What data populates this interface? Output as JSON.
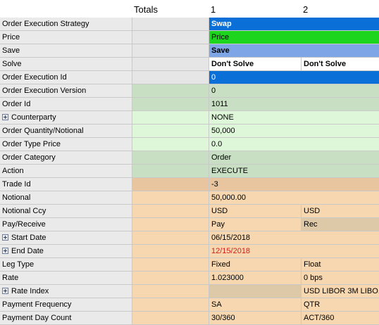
{
  "header": {
    "totals": "Totals",
    "col1": "1",
    "col2": "2"
  },
  "colors": {
    "label_bg": "#eaeaea",
    "totals_gray": "#e6e6e6",
    "totals_green": "#c8dfc3",
    "totals_orange": "#f6d7b0",
    "swap_blue": "#0a6fd6",
    "price_green": "#1cd51c",
    "save_blue": "#7ea6e6",
    "solve_white": "#ffffff",
    "val_green_dark": "#c8dfc3",
    "val_green_light": "#def7d8",
    "val_orange_dark": "#e8c59e",
    "val_orange": "#f6d7b0",
    "val_tan": "#ddc8a8"
  },
  "rows": [
    {
      "label": "Order Execution Strategy",
      "value": "Swap"
    },
    {
      "label": "Price",
      "value": "Price"
    },
    {
      "label": "Save",
      "value": "Save"
    },
    {
      "label": "Solve",
      "col1": "Don't Solve",
      "col2": "Don't Solve"
    },
    {
      "label": "Order Execution Id",
      "value": "0"
    },
    {
      "label": "Order Execution Version",
      "value": "0"
    },
    {
      "label": "Order Id",
      "value": "1011"
    },
    {
      "label": "Counterparty",
      "value": "NONE"
    },
    {
      "label": "Order Quantity/Notional",
      "value": "50,000"
    },
    {
      "label": "Order Type Price",
      "value": "0.0"
    },
    {
      "label": "Order Category",
      "value": "Order"
    },
    {
      "label": "Action",
      "value": "EXECUTE"
    },
    {
      "label": "Trade Id",
      "value": "-3"
    },
    {
      "label": "Notional",
      "value": "50,000.00"
    },
    {
      "label": "Notional Ccy",
      "col1": "USD",
      "col2": "USD"
    },
    {
      "label": "Pay/Receive",
      "col1": "Pay",
      "col2": "Rec"
    },
    {
      "label": "Start Date",
      "value": "06/15/2018"
    },
    {
      "label": "End Date",
      "value": "12/15/2018"
    },
    {
      "label": "Leg Type",
      "col1": "Fixed",
      "col2": "Float"
    },
    {
      "label": "Rate",
      "col1": "1.023000",
      "col2": "0 bps"
    },
    {
      "label": "Rate Index",
      "col1": "",
      "col2": "USD LIBOR 3M LIBO..."
    },
    {
      "label": "Payment Frequency",
      "col1": "SA",
      "col2": "QTR"
    },
    {
      "label": "Payment Day Count",
      "col1": "30/360",
      "col2": "ACT/360"
    }
  ]
}
